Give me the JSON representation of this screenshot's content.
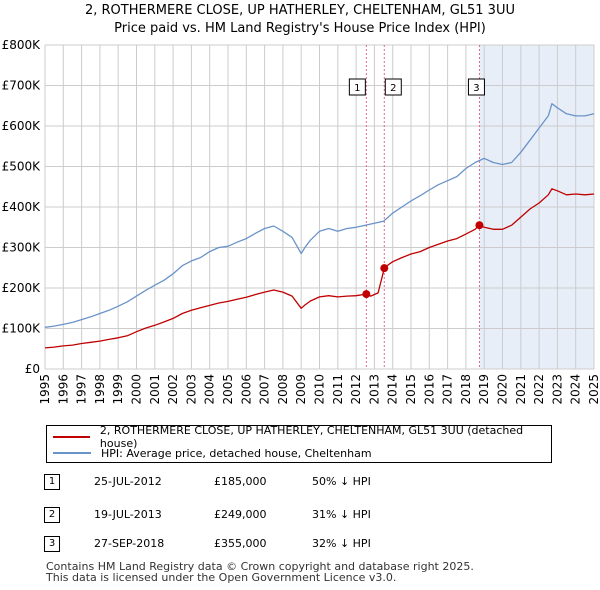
{
  "title": {
    "line1": "2, ROTHERMERE CLOSE, UP HATHERLEY, CHELTENHAM, GL51 3UU",
    "line2": "Price paid vs. HM Land Registry's House Price Index (HPI)"
  },
  "colors": {
    "property": "#c00000",
    "hpi": "#6a93c9",
    "shade": "#e8eef8",
    "marker_line": "#e06b8b",
    "grid": "#cccccc"
  },
  "chart_data": {
    "type": "line",
    "ylabel": "",
    "xlabel": "",
    "xlim": [
      1995,
      2025
    ],
    "ylim": [
      0,
      800000
    ],
    "y_ticks": [
      0,
      100000,
      200000,
      300000,
      400000,
      500000,
      600000,
      700000,
      800000
    ],
    "y_tick_labels": [
      "£0",
      "£100K",
      "£200K",
      "£300K",
      "£400K",
      "£500K",
      "£600K",
      "£700K",
      "£800K"
    ],
    "x_ticks": [
      1995,
      1996,
      1997,
      1998,
      1999,
      2000,
      2001,
      2002,
      2003,
      2004,
      2005,
      2006,
      2007,
      2008,
      2009,
      2010,
      2011,
      2012,
      2013,
      2014,
      2015,
      2016,
      2017,
      2018,
      2019,
      2020,
      2021,
      2022,
      2023,
      2024,
      2025
    ],
    "x_tick_labels": [
      "1995",
      "1996",
      "1997",
      "1998",
      "1999",
      "2000",
      "2001",
      "2002",
      "2003",
      "2004",
      "2005",
      "2006",
      "2007",
      "2008",
      "2009",
      "2010",
      "2011",
      "2012",
      "2013",
      "2014",
      "2015",
      "2016",
      "2017",
      "2018",
      "2019",
      "2020",
      "2021",
      "2022",
      "2023",
      "2024",
      "2025"
    ],
    "shaded_range": [
      2018.74,
      2025
    ],
    "series": [
      {
        "name": "2, ROTHERMERE CLOSE, UP HATHERLEY, CHELTENHAM, GL51 3UU (detached house)",
        "color": "#c00000",
        "x": [
          1995.0,
          1995.5,
          1996.0,
          1996.5,
          1997.0,
          1997.5,
          1998.0,
          1998.5,
          1999.0,
          1999.5,
          2000.0,
          2000.5,
          2001.0,
          2001.5,
          2002.0,
          2002.5,
          2003.0,
          2003.5,
          2004.0,
          2004.5,
          2005.0,
          2005.5,
          2006.0,
          2006.5,
          2007.0,
          2007.5,
          2008.0,
          2008.5,
          2009.0,
          2009.2,
          2009.5,
          2010.0,
          2010.5,
          2011.0,
          2011.5,
          2012.0,
          2012.56,
          2012.8,
          2013.2,
          2013.54,
          2013.6,
          2014.0,
          2014.5,
          2015.0,
          2015.5,
          2016.0,
          2016.5,
          2017.0,
          2017.5,
          2018.0,
          2018.5,
          2018.74,
          2019.0,
          2019.5,
          2020.0,
          2020.5,
          2021.0,
          2021.5,
          2022.0,
          2022.5,
          2022.7,
          2023.0,
          2023.5,
          2024.0,
          2024.5,
          2025.0
        ],
        "values": [
          52000,
          54000,
          57000,
          59000,
          63000,
          66000,
          69000,
          73000,
          77000,
          82000,
          92000,
          101000,
          108000,
          116000,
          125000,
          137000,
          145000,
          151000,
          157000,
          163000,
          167000,
          172000,
          177000,
          184000,
          190000,
          195000,
          190000,
          180000,
          150000,
          158000,
          168000,
          178000,
          181000,
          178000,
          180000,
          181000,
          185000,
          180000,
          188000,
          249000,
          252000,
          265000,
          275000,
          284000,
          290000,
          300000,
          308000,
          316000,
          322000,
          333000,
          345000,
          355000,
          350000,
          345000,
          345000,
          355000,
          375000,
          395000,
          410000,
          430000,
          445000,
          440000,
          430000,
          432000,
          430000,
          432000
        ]
      },
      {
        "name": "HPI: Average price, detached house, Cheltenham",
        "color": "#6a93c9",
        "x": [
          1995.0,
          1995.5,
          1996.0,
          1996.5,
          1997.0,
          1997.5,
          1998.0,
          1998.5,
          1999.0,
          1999.5,
          2000.0,
          2000.5,
          2001.0,
          2001.5,
          2002.0,
          2002.5,
          2003.0,
          2003.5,
          2004.0,
          2004.5,
          2005.0,
          2005.5,
          2006.0,
          2006.5,
          2007.0,
          2007.5,
          2008.0,
          2008.5,
          2009.0,
          2009.2,
          2009.5,
          2010.0,
          2010.5,
          2011.0,
          2011.5,
          2012.0,
          2012.5,
          2013.0,
          2013.5,
          2014.0,
          2014.5,
          2015.0,
          2015.5,
          2016.0,
          2016.5,
          2017.0,
          2017.5,
          2018.0,
          2018.5,
          2019.0,
          2019.5,
          2020.0,
          2020.5,
          2021.0,
          2021.5,
          2022.0,
          2022.5,
          2022.7,
          2023.0,
          2023.5,
          2024.0,
          2024.5,
          2025.0
        ],
        "values": [
          103000,
          106000,
          110000,
          115000,
          122000,
          129000,
          137000,
          145000,
          155000,
          166000,
          180000,
          194000,
          207000,
          219000,
          235000,
          255000,
          267000,
          275000,
          290000,
          300000,
          303000,
          313000,
          322000,
          335000,
          347000,
          353000,
          340000,
          325000,
          285000,
          300000,
          318000,
          340000,
          347000,
          340000,
          347000,
          350000,
          355000,
          360000,
          365000,
          385000,
          400000,
          415000,
          428000,
          442000,
          455000,
          465000,
          475000,
          495000,
          510000,
          520000,
          510000,
          505000,
          510000,
          535000,
          565000,
          595000,
          625000,
          655000,
          645000,
          630000,
          625000,
          625000,
          630000
        ]
      }
    ],
    "sales": [
      {
        "label": "1",
        "x": 2012.56,
        "price": 185000
      },
      {
        "label": "2",
        "x": 2013.54,
        "price": 249000
      },
      {
        "label": "3",
        "x": 2018.74,
        "price": 355000
      }
    ]
  },
  "legend": {
    "property_label": "2, ROTHERMERE CLOSE, UP HATHERLEY, CHELTENHAM, GL51 3UU (detached house)",
    "hpi_label": "HPI: Average price, detached house, Cheltenham"
  },
  "transactions": [
    {
      "num": "1",
      "date": "25-JUL-2012",
      "price": "£185,000",
      "hpi": "50% ↓ HPI"
    },
    {
      "num": "2",
      "date": "19-JUL-2013",
      "price": "£249,000",
      "hpi": "31% ↓ HPI"
    },
    {
      "num": "3",
      "date": "27-SEP-2018",
      "price": "£355,000",
      "hpi": "32% ↓ HPI"
    }
  ],
  "footer": {
    "line1": "Contains HM Land Registry data © Crown copyright and database right 2025.",
    "line2": "This data is licensed under the Open Government Licence v3.0."
  }
}
